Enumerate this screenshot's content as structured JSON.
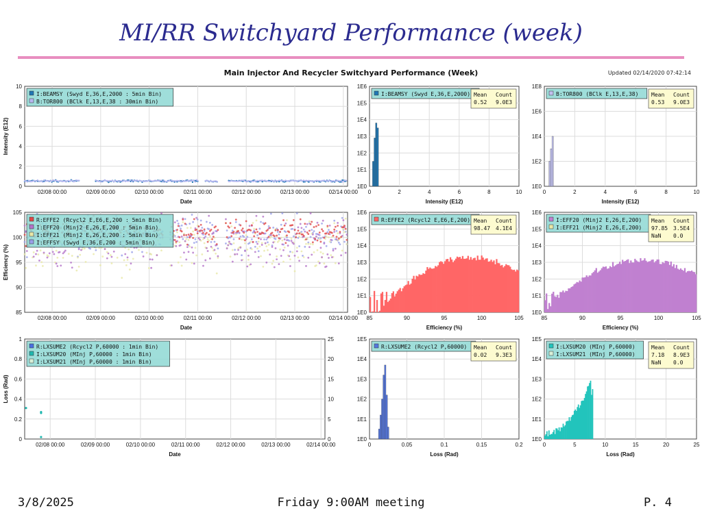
{
  "slide": {
    "title": "MI/RR Switchyard Performance (week)",
    "footer_date": "3/8/2025",
    "footer_meeting": "Friday 9:00AM meeting",
    "footer_page": "P. 4"
  },
  "figure": {
    "title": "Main Injector And Recycler Switchyard Performance (Week)",
    "updated": "Updated 02/14/2020 07:42:14"
  },
  "colors": {
    "beamsy": "#1f77b4",
    "tor800": "#b8b8f0",
    "effe2": "#e04848",
    "eff20": "#b473c8",
    "eff21": "#e8e8a8",
    "effsy": "#9aa0e8",
    "lxsume2": "#4a6fe0",
    "lxsum20": "#20b8b0",
    "lxsum21": "#d8f0d8",
    "hist_effe2": "#ff6666",
    "hist_eff20": "#c080d0",
    "hist_lxsume2": "#5577dd",
    "hist_lxsum20": "#22c4bc",
    "hist_beamsy": "#1f77b4",
    "hist_tor800": "#c0c0ee",
    "legend_bg": "#8ed8d4",
    "stats_bg": "#fdfbd0"
  },
  "chart_data": [
    {
      "id": "intensity-time",
      "type": "scatter",
      "xlabel": "Date",
      "ylabel": "Intensity (E12)",
      "ylim": [
        0,
        10
      ],
      "yticks": [
        "0",
        "2",
        "4",
        "6",
        "8",
        "10"
      ],
      "xticks": [
        "02/08 00:00",
        "02/09 00:00",
        "02/10 00:00",
        "02/11 00:00",
        "02/12 00:00",
        "02/13 00:00",
        "02/14 00:00"
      ],
      "grid": true,
      "legend": "top-left",
      "series": [
        {
          "name": "I:BEAMSY (Swyd E,36,E,2000 : 5min Bin)",
          "level": 0.52,
          "gaps": [
            [
              0.17,
              0.22
            ],
            [
              0.54,
              0.56
            ],
            [
              0.6,
              0.63
            ]
          ]
        },
        {
          "name": "B:TOR800 (BClk E,13,E,38 : 30min Bin)",
          "level": 0.53,
          "gaps": [
            [
              0.17,
              0.22
            ],
            [
              0.54,
              0.56
            ],
            [
              0.6,
              0.63
            ]
          ]
        }
      ]
    },
    {
      "id": "intensity-hist-beamsy",
      "type": "bar",
      "xlabel": "Intensity (E12)",
      "xlim": [
        0,
        10
      ],
      "xticks": [
        "0",
        "2",
        "4",
        "6",
        "8",
        "10"
      ],
      "ylog": true,
      "yticks": [
        "1E0",
        "1E1",
        "1E2",
        "1E3",
        "1E4",
        "1E5",
        "1E6"
      ],
      "legend": "I:BEAMSY (Swyd E,36,E,2000)",
      "stats": {
        "mean_label": "Mean",
        "count_label": "Count",
        "mean": "0.52",
        "count": "9.0E3"
      },
      "bins": [
        [
          0.2,
          0.3,
          1.5
        ],
        [
          0.3,
          0.4,
          2.9
        ],
        [
          0.4,
          0.5,
          3.8
        ],
        [
          0.5,
          0.6,
          3.5
        ]
      ]
    },
    {
      "id": "intensity-hist-tor800",
      "type": "bar",
      "xlabel": "Intensity (E12)",
      "xlim": [
        0,
        10
      ],
      "xticks": [
        "0",
        "2",
        "4",
        "6",
        "8",
        "10"
      ],
      "ylog": true,
      "yticks": [
        "1E0",
        "1E2",
        "1E4",
        "1E6",
        "1E8"
      ],
      "legend": "B:TOR800 (BClk E,13,E,38)",
      "stats": {
        "mean_label": "Mean",
        "count_label": "Count",
        "mean": "0.53",
        "count": "9.0E3"
      },
      "bins": [
        [
          0.3,
          0.4,
          2.0
        ],
        [
          0.4,
          0.5,
          3.0
        ],
        [
          0.5,
          0.6,
          4.0
        ]
      ]
    },
    {
      "id": "efficiency-time",
      "type": "scatter",
      "xlabel": "Date",
      "ylabel": "Efficiency (%)",
      "ylim": [
        85,
        105
      ],
      "yticks": [
        "85",
        "90",
        "95",
        "100",
        "105"
      ],
      "xticks": [
        "02/08 00:00",
        "02/09 00:00",
        "02/10 00:00",
        "02/11 00:00",
        "02/12 00:00",
        "02/13 00:00",
        "02/14 00:00"
      ],
      "grid": true,
      "legend": "top-left",
      "series": [
        {
          "name": "R:EFFE2 (Rcycl2 E,E6,E,200 : 5min Bin)",
          "center": 101.2,
          "spread": 1.2
        },
        {
          "name": "I:EFF20 (Minj2 E,26,E,200 : 5min Bin)",
          "center": 99.0,
          "spread": 2.6
        },
        {
          "name": "I:EFF21 (Minj2 E,26,E,200 : 5min Bin)",
          "center": 98.5,
          "spread": 2.4
        },
        {
          "name": "I:EFFSY (Swyd E,36,E,200 : 5min Bin)",
          "center": 100.5,
          "spread": 1.8
        }
      ]
    },
    {
      "id": "efficiency-hist-effe2",
      "type": "bar",
      "xlabel": "Efficiency (%)",
      "xlim": [
        85,
        105
      ],
      "xticks": [
        "85",
        "90",
        "95",
        "100",
        "105"
      ],
      "ylog": true,
      "yticks": [
        "1E0",
        "1E1",
        "1E2",
        "1E3",
        "1E4",
        "1E5",
        "1E6"
      ],
      "legend": "R:EFFE2 (Rcycl2 E,E6,E,200)",
      "stats": {
        "mean_label": "Mean",
        "count_label": "Count",
        "mean": "98.47",
        "count": "4.1E4"
      },
      "peak": 98.5,
      "peak_log": 3.3,
      "width": 4.5
    },
    {
      "id": "efficiency-hist-eff20",
      "type": "bar",
      "xlabel": "Efficiency (%)",
      "xlim": [
        85,
        105
      ],
      "xticks": [
        "85",
        "90",
        "95",
        "100",
        "105"
      ],
      "ylog": true,
      "yticks": [
        "1E0",
        "1E1",
        "1E2",
        "1E3",
        "1E4",
        "1E5",
        "1E6"
      ],
      "legend": [
        "I:EFF20 (Minj2 E,26,E,200)",
        "I:EFF21 (Minj2 E,26,E,200)"
      ],
      "stats": {
        "mean_label": "Mean",
        "count_label": "Count",
        "nan_label": "NaN",
        "mean": "97.85",
        "count": "3.5E4",
        "nan": "0.0"
      },
      "peak": 97.9,
      "peak_log": 3.15,
      "width": 5.0
    },
    {
      "id": "loss-time",
      "type": "scatter",
      "xlabel": "Date",
      "ylabel": "Loss (Rad)",
      "ylim": [
        0,
        1
      ],
      "yticks": [
        "0",
        "0.2",
        "0.4",
        "0.6",
        "0.8",
        "1"
      ],
      "y2ticks": [
        "0",
        "5",
        "10",
        "15",
        "20",
        "25"
      ],
      "xticks": [
        "02/08 00:00",
        "02/09 00:00",
        "02/10 00:00",
        "02/11 00:00",
        "02/12 00:00",
        "02/13 00:00",
        "02/14 00:00"
      ],
      "grid": true,
      "legend": "top-left",
      "series": [
        {
          "name": "R:LXSUME2 (Rcycl2 P,60000 : 1min Bin)"
        },
        {
          "name": "I:LXSUM20 (MInj P,60000 : 1min Bin)",
          "points": [
            [
              0.0,
              0.31
            ],
            [
              0.05,
              0.27
            ],
            [
              0.05,
              0.26
            ],
            [
              0.05,
              0.02
            ]
          ]
        },
        {
          "name": "I:LXSUM21 (MInj P,60000 : 1min Bin)"
        }
      ]
    },
    {
      "id": "loss-hist-lxsume2",
      "type": "bar",
      "xlabel": "Loss (Rad)",
      "xlim": [
        0,
        0.2
      ],
      "xticks": [
        "0",
        "0.05",
        "0.1",
        "0.15",
        "0.2"
      ],
      "ylog": true,
      "yticks": [
        "1E0",
        "1E1",
        "1E2",
        "1E3",
        "1E4",
        "1E5"
      ],
      "legend": "R:LXSUME2 (Rcycl2 P,60000)",
      "stats": {
        "mean_label": "Mean",
        "count_label": "Count",
        "mean": "0.02",
        "count": "9.3E3"
      },
      "bins": [
        [
          0.012,
          0.014,
          0.5
        ],
        [
          0.014,
          0.016,
          1.2
        ],
        [
          0.016,
          0.018,
          2.0
        ],
        [
          0.018,
          0.02,
          3.2
        ],
        [
          0.02,
          0.022,
          3.7
        ],
        [
          0.022,
          0.024,
          2.2
        ],
        [
          0.024,
          0.026,
          0.6
        ]
      ]
    },
    {
      "id": "loss-hist-lxsum20",
      "type": "bar",
      "xlabel": "Loss (Rad)",
      "xlim": [
        0,
        25
      ],
      "xticks": [
        "0",
        "5",
        "10",
        "15",
        "20",
        "25"
      ],
      "ylog": true,
      "yticks": [
        "1E0",
        "1E1",
        "1E2",
        "1E3",
        "1E4",
        "1E5"
      ],
      "legend": [
        "I:LXSUM20 (MInj P,60000)",
        "I:LXSUM21 (MInj P,60000)"
      ],
      "stats": {
        "mean_label": "Mean",
        "count_label": "Count",
        "nan_label": "NaN",
        "mean": "7.18",
        "count": "8.9E3",
        "nan": "0.0"
      },
      "bins_start": 0,
      "bins_end": 8.0
    }
  ]
}
